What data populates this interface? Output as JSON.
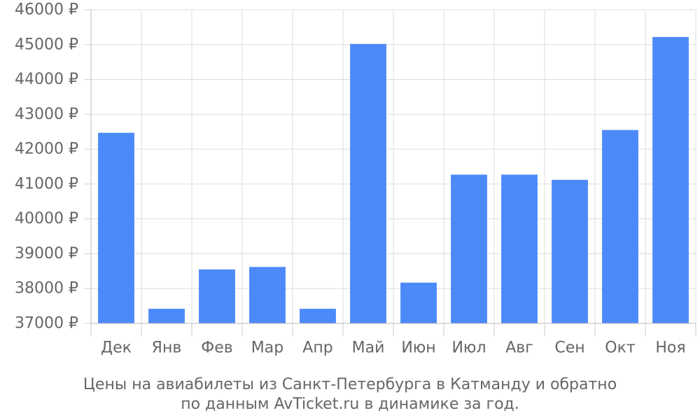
{
  "chart_data": {
    "type": "bar",
    "categories": [
      "Дек",
      "Янв",
      "Фев",
      "Мар",
      "Апр",
      "Май",
      "Июн",
      "Июл",
      "Авг",
      "Сен",
      "Окт",
      "Ноя"
    ],
    "values": [
      42470,
      37420,
      38550,
      38620,
      37420,
      45020,
      38170,
      41270,
      41270,
      41120,
      42550,
      45220
    ],
    "ylim": [
      37000,
      46000
    ],
    "y_ticks": [
      37000,
      38000,
      39000,
      40000,
      41000,
      42000,
      43000,
      44000,
      45000,
      46000
    ],
    "y_tick_labels": [
      "37000 ₽",
      "38000 ₽",
      "39000 ₽",
      "40000 ₽",
      "41000 ₽",
      "42000 ₽",
      "43000 ₽",
      "44000 ₽",
      "45000 ₽",
      "46000 ₽"
    ],
    "grid": true,
    "title": "",
    "xlabel": "",
    "ylabel": "",
    "bar_color": "#4d8af9",
    "grid_color": "#dddddd",
    "caption_lines": [
      "Цены на авиабилеты из Санкт-Петербурга в Катманду и обратно",
      "по данным AvTicket.ru в динамике за год."
    ]
  }
}
